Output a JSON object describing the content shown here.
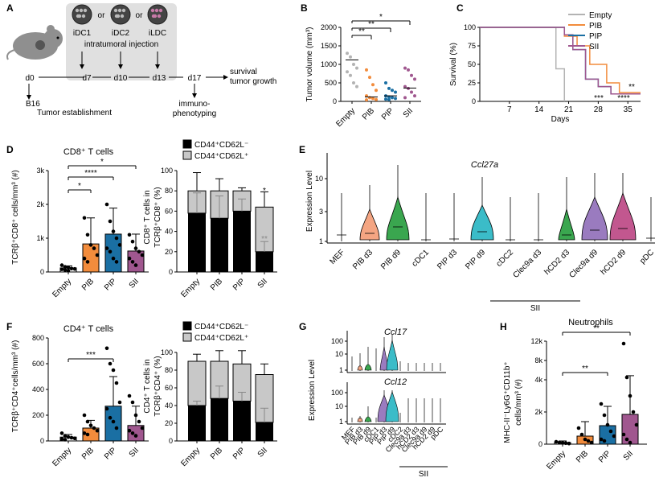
{
  "panels": {
    "A": "A",
    "B": "B",
    "C": "C",
    "D": "D",
    "E": "E",
    "F": "F",
    "G": "G",
    "H": "H"
  },
  "colors": {
    "empty": "#b3b3b3",
    "pib": "#f28c3c",
    "pip": "#1a6fa3",
    "sii": "#a0578f",
    "pib_d3": "#f4a582",
    "pib_d9": "#3aa64f",
    "pip_d9": "#3bbcc8",
    "clec9a": "#9a7bbf",
    "hcd2": "#c2578f",
    "neutro_pip": "#1a6fa3"
  },
  "schematic": {
    "cell_labels": [
      "iDC1",
      "iDC2",
      "iLDC"
    ],
    "or": "or",
    "injection": "intratumoral injection",
    "days": [
      "d0",
      "d7",
      "d10",
      "d13",
      "d17"
    ],
    "survival": "survival\ntumor growth",
    "immuno": "immuno-\nphenotyping",
    "b16": "B16",
    "establishment": "Tumor establishment"
  },
  "groups": [
    "Empty",
    "PIB",
    "PIP",
    "SII"
  ],
  "chart_data": [
    {
      "id": "B",
      "type": "scatter",
      "ylabel": "Tumor volume (mm³)",
      "ylim": [
        0,
        2000
      ],
      "yticks": [
        0,
        500,
        1000,
        1500,
        2000
      ],
      "categories": [
        "Empty",
        "PIB",
        "PIP",
        "SII"
      ],
      "medians": [
        1120,
        120,
        150,
        360
      ],
      "series": [
        {
          "name": "Empty",
          "values": [
            1300,
            1200,
            1000,
            900,
            800,
            700,
            500,
            400
          ]
        },
        {
          "name": "PIB",
          "values": [
            850,
            650,
            450,
            300,
            150,
            100,
            80,
            50,
            40
          ]
        },
        {
          "name": "PIP",
          "values": [
            500,
            350,
            300,
            250,
            150,
            120,
            100,
            80,
            60,
            50
          ]
        },
        {
          "name": "SII",
          "values": [
            900,
            850,
            700,
            600,
            400,
            350,
            250,
            150,
            100
          ]
        }
      ],
      "sig": [
        "**",
        "**",
        "*"
      ]
    },
    {
      "id": "C",
      "type": "line",
      "ylabel": "Survival (%)",
      "xlabel": "Days",
      "xlim": [
        0,
        38
      ],
      "ylim": [
        0,
        100
      ],
      "xticks": [
        7,
        14,
        21,
        28,
        35
      ],
      "yticks": [
        0,
        25,
        50,
        75,
        100
      ],
      "series": [
        {
          "name": "Empty",
          "x": [
            0,
            18,
            18,
            20,
            20
          ],
          "y": [
            100,
            100,
            44,
            44,
            0
          ]
        },
        {
          "name": "PIB",
          "x": [
            0,
            20,
            20,
            23,
            23,
            26,
            26,
            30,
            30,
            33,
            33,
            38
          ],
          "y": [
            100,
            100,
            88,
            88,
            75,
            75,
            50,
            50,
            25,
            25,
            12,
            12
          ]
        },
        {
          "name": "PIP",
          "x": [
            0,
            20,
            20,
            22,
            22,
            25,
            25,
            28,
            28,
            31,
            31,
            38
          ],
          "y": [
            100,
            100,
            90,
            90,
            70,
            70,
            30,
            30,
            20,
            20,
            10,
            10
          ]
        },
        {
          "name": "SII",
          "x": [
            0,
            20,
            20,
            22,
            22,
            25,
            25,
            28,
            28,
            31,
            31,
            38
          ],
          "y": [
            100,
            100,
            90,
            90,
            70,
            70,
            30,
            30,
            20,
            20,
            10,
            10
          ]
        }
      ],
      "legend": [
        "Empty",
        "PIB",
        "PIP",
        "SII"
      ],
      "sig": [
        "**",
        "***",
        "****"
      ]
    },
    {
      "id": "D1",
      "type": "bar",
      "title": "CD8⁺ T cells",
      "ylabel": "TCRβ⁺CD8⁺ cells/mm³ (#)",
      "ylim": [
        0,
        3000
      ],
      "ytick_labels": [
        "0",
        "1k",
        "2k",
        "3k"
      ],
      "categories": [
        "Empty",
        "PIB",
        "PIP",
        "SII"
      ],
      "values": [
        120,
        830,
        1120,
        620
      ],
      "errors": [
        60,
        770,
        770,
        500
      ],
      "points": [
        [
          200,
          150,
          130,
          100,
          90,
          80,
          60,
          40
        ],
        [
          1600,
          1100,
          800,
          700,
          500,
          400,
          300
        ],
        [
          2000,
          1500,
          1200,
          1000,
          800,
          700,
          600,
          400,
          300
        ],
        [
          1100,
          900,
          700,
          600,
          500,
          400,
          300,
          200
        ]
      ],
      "sig": [
        "*",
        "****",
        "*"
      ]
    },
    {
      "id": "D2",
      "type": "bar",
      "ylabel": "CD8⁺ T cells in TCRβ⁺CD8⁺ (%)",
      "ylim": [
        0,
        100
      ],
      "yticks": [
        0,
        20,
        40,
        60,
        80,
        100
      ],
      "categories": [
        "Empty",
        "PIB",
        "PIP",
        "SII"
      ],
      "legend": [
        "CD44⁺CD62L⁻",
        "CD44⁺CD62L⁺"
      ],
      "series": [
        {
          "name": "CD44⁺CD62L⁻",
          "values": [
            58,
            53,
            60,
            20
          ],
          "errors": [
            20,
            22,
            12,
            10
          ]
        },
        {
          "name": "CD44⁺CD62L⁺",
          "values": [
            22,
            27,
            20,
            44
          ],
          "errors": [
            18,
            12,
            3,
            15
          ]
        }
      ],
      "sig": [
        "*",
        "**"
      ]
    },
    {
      "id": "E",
      "type": "violin",
      "title": "Ccl27a",
      "ylabel": "Expression Level",
      "yticks": [
        1,
        3,
        10
      ],
      "categories": [
        "MEF",
        "PIB d3",
        "PIB d9",
        "cDC1",
        "PIP d3",
        "PIP d9",
        "cDC2",
        "Clec9a d3",
        "hCD2 d3",
        "Clec9a d9",
        "hCD2 d9",
        "pDC"
      ],
      "group_label": "SII"
    },
    {
      "id": "F1",
      "type": "bar",
      "title": "CD4⁺ T cells",
      "ylabel": "TCRβ⁺CD4⁺cells/mm³ (#)",
      "ylim": [
        0,
        800
      ],
      "yticks": [
        0,
        200,
        400,
        600,
        800
      ],
      "categories": [
        "Empty",
        "PIB",
        "PIP",
        "SII"
      ],
      "values": [
        30,
        100,
        270,
        120
      ],
      "errors": [
        20,
        60,
        230,
        150
      ],
      "points": [
        [
          60,
          40,
          30,
          25,
          20,
          15,
          10
        ],
        [
          200,
          150,
          120,
          100,
          80,
          60,
          50
        ],
        [
          720,
          600,
          550,
          450,
          300,
          250,
          180,
          150,
          100
        ],
        [
          350,
          300,
          200,
          150,
          100,
          80,
          60,
          40
        ]
      ],
      "sig": [
        "***"
      ]
    },
    {
      "id": "F2",
      "type": "bar",
      "ylabel": "CD4⁺ T cells in TCRβ⁺CD4⁺ (%)",
      "ylim": [
        0,
        100
      ],
      "yticks": [
        0,
        20,
        40,
        60,
        80,
        100
      ],
      "categories": [
        "Empty",
        "PIB",
        "PIP",
        "SII"
      ],
      "legend": [
        "CD44⁺CD62L⁻",
        "CD44⁺CD62L⁺"
      ],
      "series": [
        {
          "name": "CD44⁺CD62L⁻",
          "values": [
            40,
            48,
            45,
            21
          ],
          "errors": [
            5,
            14,
            10,
            16
          ]
        },
        {
          "name": "CD44⁺CD62L⁺",
          "values": [
            50,
            42,
            42,
            54
          ],
          "errors": [
            8,
            12,
            15,
            12
          ]
        }
      ]
    },
    {
      "id": "G",
      "type": "violin",
      "titles": [
        "Ccl17",
        "Ccl12"
      ],
      "ylabel": "Expression Level",
      "yticks": [
        1,
        10,
        100
      ],
      "categories": [
        "MEF",
        "PIB d3",
        "PIB d9",
        "cDC1",
        "PIP d3",
        "PIP d9",
        "cDC2",
        "Clec9a d3",
        "hCD2 d3",
        "Clec9a d9",
        "hCD2 d9",
        "pDC"
      ],
      "group_label": "SII"
    },
    {
      "id": "H",
      "type": "bar",
      "title": "Neutrophils",
      "ylabel": "MHC-II⁻Ly6G⁺CD11b⁺ cells/mm³ (#)",
      "ytick_labels": [
        "0",
        "2k",
        "4k",
        "8k",
        "12k"
      ],
      "categories": [
        "Empty",
        "PIB",
        "PIP",
        "SII"
      ],
      "values": [
        100,
        500,
        1150,
        1850
      ],
      "errors": [
        100,
        900,
        1200,
        3000
      ],
      "sig": [
        "**",
        "**"
      ]
    }
  ]
}
